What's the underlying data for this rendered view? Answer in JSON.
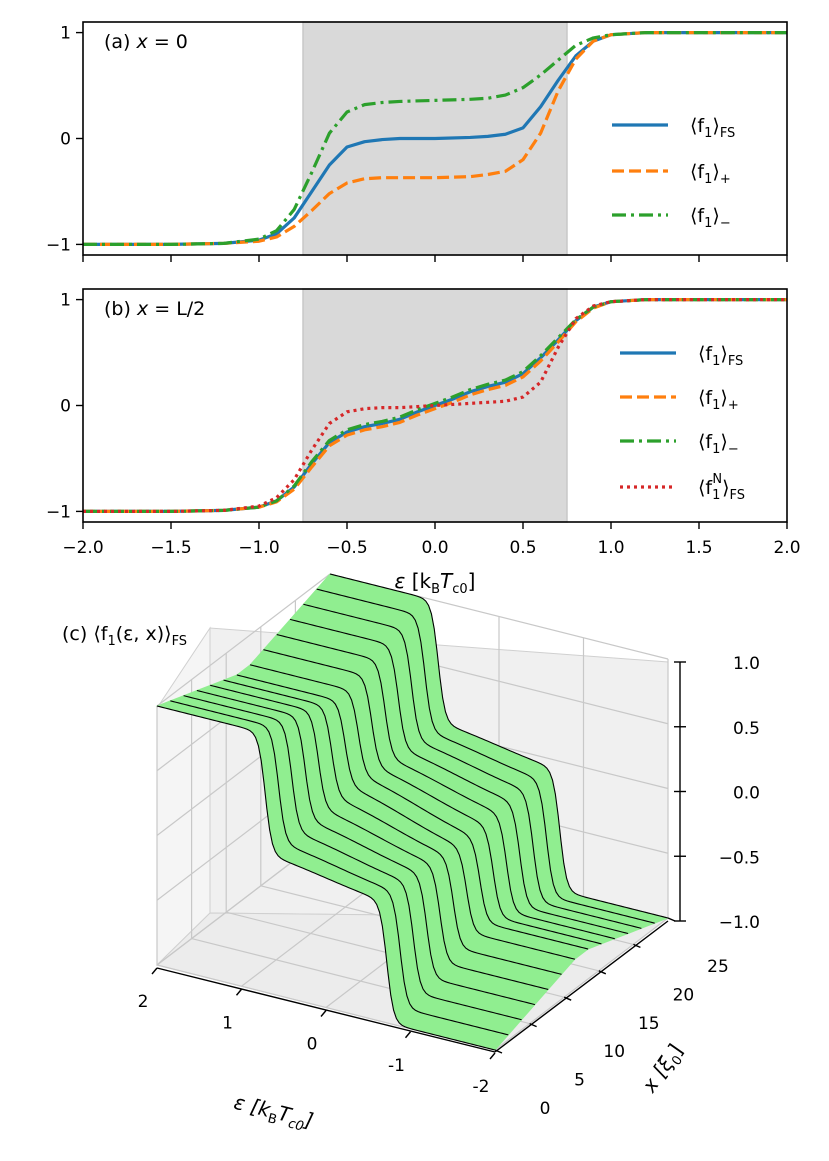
{
  "chart_data": [
    {
      "panel": "a",
      "type": "line",
      "annotation_label": "(a)",
      "annotation_var": "x",
      "annotation_val": "= 0",
      "xlim": [
        -2.0,
        2.0
      ],
      "ylim": [
        -1.1,
        1.1
      ],
      "yticks": [
        {
          "v": 1,
          "label": "1"
        },
        {
          "v": 0,
          "label": "0"
        },
        {
          "v": -1,
          "label": "−1"
        }
      ],
      "shaded_band": [
        -0.75,
        0.75
      ],
      "legend_position": "center-right",
      "series": [
        {
          "key": "fs",
          "legend_main": "⟨f",
          "legend_sub1": "1",
          "legend_close": "⟩",
          "legend_subscript": "FS",
          "color": "#1f77b4",
          "style": "solid",
          "x": [
            -2.0,
            -1.5,
            -1.2,
            -1.0,
            -0.9,
            -0.8,
            -0.7,
            -0.6,
            -0.5,
            -0.4,
            -0.3,
            -0.2,
            0.0,
            0.2,
            0.3,
            0.4,
            0.5,
            0.6,
            0.7,
            0.8,
            0.9,
            1.0,
            1.2,
            1.5,
            2.0
          ],
          "y": [
            -1.0,
            -1.0,
            -0.99,
            -0.96,
            -0.9,
            -0.75,
            -0.5,
            -0.25,
            -0.08,
            -0.03,
            -0.01,
            0.0,
            0.0,
            0.01,
            0.02,
            0.04,
            0.1,
            0.3,
            0.55,
            0.78,
            0.92,
            0.98,
            1.0,
            1.0,
            1.0
          ]
        },
        {
          "key": "plus",
          "legend_main": "⟨f",
          "legend_sub1": "1",
          "legend_close": "⟩",
          "legend_subscript": "+",
          "color": "#ff7f0e",
          "style": "dashed",
          "x": [
            -2.0,
            -1.5,
            -1.2,
            -1.0,
            -0.9,
            -0.8,
            -0.7,
            -0.6,
            -0.5,
            -0.4,
            -0.3,
            -0.2,
            0.0,
            0.2,
            0.3,
            0.4,
            0.5,
            0.6,
            0.7,
            0.8,
            0.9,
            1.0,
            1.2,
            1.5,
            2.0
          ],
          "y": [
            -1.0,
            -1.0,
            -0.99,
            -0.97,
            -0.93,
            -0.83,
            -0.68,
            -0.52,
            -0.42,
            -0.38,
            -0.37,
            -0.37,
            -0.37,
            -0.36,
            -0.34,
            -0.31,
            -0.2,
            0.05,
            0.45,
            0.75,
            0.92,
            0.98,
            1.0,
            1.0,
            1.0
          ]
        },
        {
          "key": "minus",
          "legend_main": "⟨f",
          "legend_sub1": "1",
          "legend_close": "⟩",
          "legend_subscript": "−",
          "color": "#2ca02c",
          "style": "dashdot",
          "x": [
            -2.0,
            -1.5,
            -1.2,
            -1.0,
            -0.9,
            -0.8,
            -0.7,
            -0.6,
            -0.5,
            -0.4,
            -0.3,
            -0.2,
            0.0,
            0.2,
            0.3,
            0.4,
            0.5,
            0.6,
            0.7,
            0.8,
            0.9,
            1.0,
            1.2,
            1.5,
            2.0
          ],
          "y": [
            -1.0,
            -1.0,
            -0.99,
            -0.95,
            -0.87,
            -0.67,
            -0.32,
            0.05,
            0.25,
            0.32,
            0.34,
            0.35,
            0.36,
            0.37,
            0.38,
            0.41,
            0.48,
            0.6,
            0.74,
            0.88,
            0.95,
            0.98,
            1.0,
            1.0,
            1.0
          ]
        }
      ]
    },
    {
      "panel": "b",
      "type": "line",
      "annotation_label": "(b)",
      "annotation_var": "x",
      "annotation_val": "= L/2",
      "xlim": [
        -2.0,
        2.0
      ],
      "ylim": [
        -1.1,
        1.1
      ],
      "xticks": [
        {
          "v": -2.0,
          "label": "−2.0"
        },
        {
          "v": -1.5,
          "label": "−1.5"
        },
        {
          "v": -1.0,
          "label": "−1.0"
        },
        {
          "v": -0.5,
          "label": "−0.5"
        },
        {
          "v": 0.0,
          "label": "0.0"
        },
        {
          "v": 0.5,
          "label": "0.5"
        },
        {
          "v": 1.0,
          "label": "1.0"
        },
        {
          "v": 1.5,
          "label": "1.5"
        },
        {
          "v": 2.0,
          "label": "2.0"
        }
      ],
      "yticks": [
        {
          "v": 1,
          "label": "1"
        },
        {
          "v": 0,
          "label": "0"
        },
        {
          "v": -1,
          "label": "−1"
        }
      ],
      "xlabel_eps": "ε",
      "xlabel_unit_open": "[k",
      "xlabel_unit_B": "B",
      "xlabel_unit_T": "T",
      "xlabel_unit_c0": "c0",
      "xlabel_unit_close": "]",
      "shaded_band": [
        -0.75,
        0.75
      ],
      "legend_position": "center-right",
      "series": [
        {
          "key": "fs",
          "legend_main": "⟨f",
          "legend_sub1": "1",
          "legend_close": "⟩",
          "legend_subscript": "FS",
          "color": "#1f77b4",
          "style": "solid",
          "x": [
            -2.0,
            -1.5,
            -1.2,
            -1.0,
            -0.9,
            -0.8,
            -0.7,
            -0.6,
            -0.5,
            -0.4,
            -0.3,
            -0.2,
            -0.1,
            0.0,
            0.1,
            0.2,
            0.3,
            0.4,
            0.5,
            0.6,
            0.7,
            0.8,
            0.9,
            1.0,
            1.2,
            1.5,
            2.0
          ],
          "y": [
            -1.0,
            -1.0,
            -0.99,
            -0.96,
            -0.9,
            -0.77,
            -0.55,
            -0.35,
            -0.25,
            -0.2,
            -0.17,
            -0.13,
            -0.06,
            0.0,
            0.06,
            0.13,
            0.18,
            0.22,
            0.3,
            0.45,
            0.62,
            0.8,
            0.93,
            0.98,
            1.0,
            1.0,
            1.0
          ]
        },
        {
          "key": "plus",
          "legend_main": "⟨f",
          "legend_sub1": "1",
          "legend_close": "⟩",
          "legend_subscript": "+",
          "color": "#ff7f0e",
          "style": "dashed",
          "x": [
            -2.0,
            -1.5,
            -1.2,
            -1.0,
            -0.9,
            -0.8,
            -0.7,
            -0.6,
            -0.5,
            -0.4,
            -0.3,
            -0.2,
            -0.1,
            0.0,
            0.1,
            0.2,
            0.3,
            0.4,
            0.5,
            0.6,
            0.7,
            0.8,
            0.9,
            1.0,
            1.2,
            1.5,
            2.0
          ],
          "y": [
            -1.0,
            -1.0,
            -0.99,
            -0.96,
            -0.91,
            -0.79,
            -0.58,
            -0.38,
            -0.28,
            -0.23,
            -0.2,
            -0.16,
            -0.09,
            -0.03,
            0.03,
            0.1,
            0.15,
            0.19,
            0.27,
            0.42,
            0.6,
            0.79,
            0.92,
            0.98,
            1.0,
            1.0,
            1.0
          ]
        },
        {
          "key": "minus",
          "legend_main": "⟨f",
          "legend_sub1": "1",
          "legend_close": "⟩",
          "legend_subscript": "−",
          "color": "#2ca02c",
          "style": "dashdot",
          "x": [
            -2.0,
            -1.5,
            -1.2,
            -1.0,
            -0.9,
            -0.8,
            -0.7,
            -0.6,
            -0.5,
            -0.4,
            -0.3,
            -0.2,
            -0.1,
            0.0,
            0.1,
            0.2,
            0.3,
            0.4,
            0.5,
            0.6,
            0.7,
            0.8,
            0.9,
            1.0,
            1.2,
            1.5,
            2.0
          ],
          "y": [
            -1.0,
            -1.0,
            -0.99,
            -0.96,
            -0.9,
            -0.76,
            -0.53,
            -0.33,
            -0.23,
            -0.18,
            -0.15,
            -0.11,
            -0.04,
            0.02,
            0.08,
            0.15,
            0.2,
            0.24,
            0.32,
            0.47,
            0.64,
            0.81,
            0.93,
            0.98,
            1.0,
            1.0,
            1.0
          ]
        },
        {
          "key": "normal",
          "legend_main": "⟨f",
          "legend_sub1": "1",
          "legend_sup": "N",
          "legend_close": "⟩",
          "legend_subscript": "FS",
          "color": "#d62728",
          "style": "dotted",
          "x": [
            -2.0,
            -1.5,
            -1.2,
            -1.0,
            -0.9,
            -0.8,
            -0.7,
            -0.6,
            -0.5,
            -0.4,
            -0.3,
            -0.2,
            -0.1,
            0.0,
            0.1,
            0.2,
            0.3,
            0.4,
            0.5,
            0.6,
            0.7,
            0.8,
            0.9,
            1.0,
            1.2,
            1.5,
            2.0
          ],
          "y": [
            -1.0,
            -1.0,
            -0.99,
            -0.95,
            -0.87,
            -0.7,
            -0.42,
            -0.17,
            -0.06,
            -0.03,
            -0.02,
            -0.02,
            -0.01,
            0.0,
            0.01,
            0.02,
            0.03,
            0.04,
            0.08,
            0.22,
            0.55,
            0.82,
            0.94,
            0.98,
            1.0,
            1.0,
            1.0
          ]
        }
      ]
    },
    {
      "panel": "c",
      "type": "surface3d",
      "title_label": "(c)",
      "title_expr_open": "⟨f",
      "title_expr_sub1": "1",
      "title_expr_args": "(ε, x)⟩",
      "title_expr_sub": "FS",
      "surface_color": "#90ee90",
      "eps_axis_label": "ε",
      "eps_axis_unit_open": "[k",
      "eps_axis_unit_B": "B",
      "eps_axis_unit_T": "T",
      "eps_axis_unit_c0": "c0",
      "eps_axis_unit_close": "]",
      "eps_ticks": [
        "2",
        "1",
        "0",
        "-1",
        "-2"
      ],
      "eps_range": [
        -2,
        2
      ],
      "x_axis_label": "x",
      "x_axis_unit_open": "[ξ",
      "x_axis_unit_sub": "0",
      "x_axis_unit_close": "]",
      "x_ticks": [
        "0",
        "5",
        "10",
        "15",
        "20",
        "25"
      ],
      "x_range": [
        0,
        25
      ],
      "z_ticks": [
        "1.0",
        "0.5",
        "0.0",
        "−0.5",
        "−1.0"
      ],
      "z_range": [
        -1,
        1
      ],
      "slice_count": 13
    }
  ]
}
